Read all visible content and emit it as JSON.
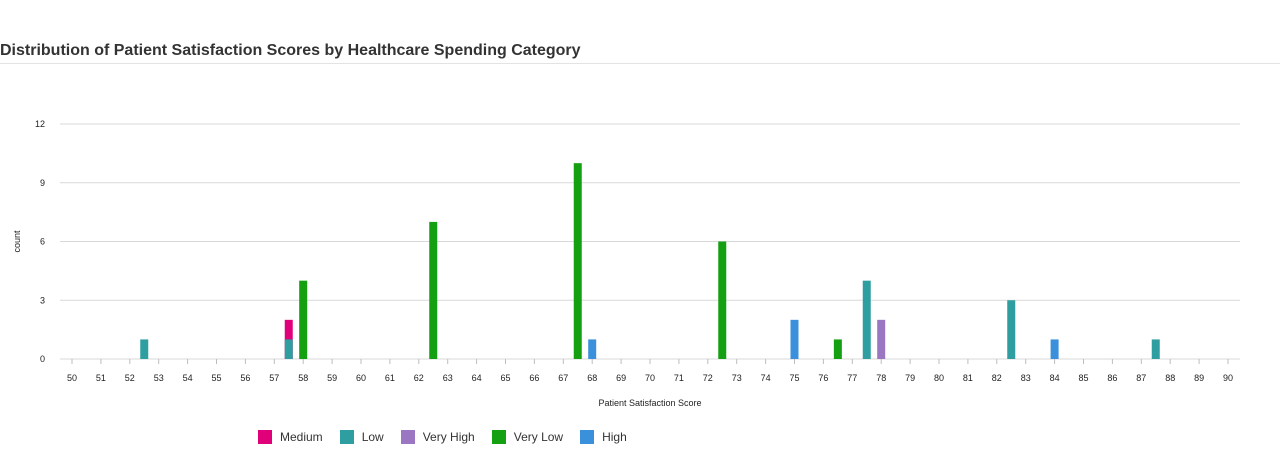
{
  "title": "Distribution of Patient Satisfaction Scores by Healthcare Spending Category",
  "chart_data": {
    "type": "bar",
    "xlabel": "Patient Satisfaction Score",
    "ylabel": "count",
    "xlim": [
      50,
      90
    ],
    "ylim": [
      0,
      12
    ],
    "yticks": [
      0,
      3,
      6,
      9,
      12
    ],
    "xticks": [
      50,
      51,
      52,
      53,
      54,
      55,
      56,
      57,
      58,
      59,
      60,
      61,
      62,
      63,
      64,
      65,
      66,
      67,
      68,
      69,
      70,
      71,
      72,
      73,
      74,
      75,
      76,
      77,
      78,
      79,
      80,
      81,
      82,
      83,
      84,
      85,
      86,
      87,
      88,
      89,
      90
    ],
    "grid": true,
    "legend_position": "bottom",
    "series": [
      {
        "name": "Medium",
        "color": "#e0007a",
        "points": [
          {
            "x": 57.5,
            "y": 2
          }
        ]
      },
      {
        "name": "Low",
        "color": "#2f9ea0",
        "points": [
          {
            "x": 52.5,
            "y": 1
          },
          {
            "x": 57.5,
            "y": 1
          },
          {
            "x": 77.5,
            "y": 4
          },
          {
            "x": 82.5,
            "y": 3
          },
          {
            "x": 87.5,
            "y": 1
          }
        ]
      },
      {
        "name": "Very High",
        "color": "#9b77c3",
        "points": [
          {
            "x": 78,
            "y": 2
          }
        ]
      },
      {
        "name": "Very Low",
        "color": "#14a010",
        "points": [
          {
            "x": 58,
            "y": 4
          },
          {
            "x": 62.5,
            "y": 7
          },
          {
            "x": 67.5,
            "y": 10
          },
          {
            "x": 72.5,
            "y": 6
          },
          {
            "x": 76.5,
            "y": 1
          }
        ]
      },
      {
        "name": "High",
        "color": "#3b90dc",
        "points": [
          {
            "x": 68,
            "y": 1
          },
          {
            "x": 75,
            "y": 2
          },
          {
            "x": 84,
            "y": 1
          }
        ]
      }
    ]
  }
}
